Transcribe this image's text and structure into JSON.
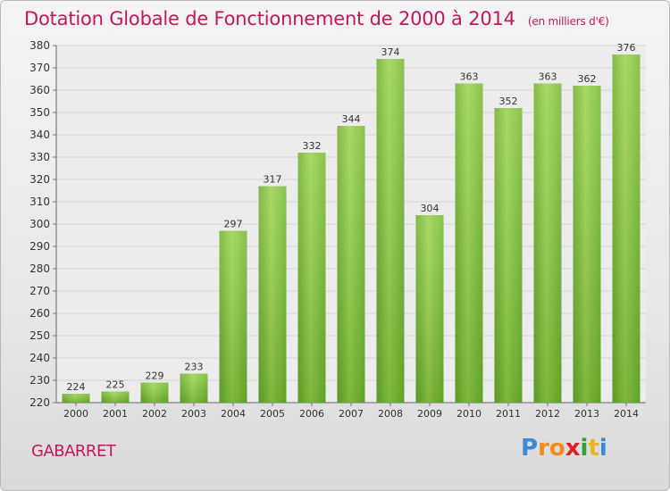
{
  "chart_data": {
    "type": "bar",
    "title": "Dotation Globale de Fonctionnement de 2000 à 2014",
    "subtitle": "(en milliers d'€)",
    "categories": [
      "2000",
      "2001",
      "2002",
      "2003",
      "2004",
      "2005",
      "2006",
      "2007",
      "2008",
      "2009",
      "2010",
      "2011",
      "2012",
      "2013",
      "2014"
    ],
    "values": [
      224,
      225,
      229,
      233,
      297,
      317,
      332,
      344,
      374,
      304,
      363,
      352,
      363,
      362,
      376
    ],
    "ylim": [
      220,
      380
    ],
    "ytick_step": 10,
    "grid": true,
    "bar_color": "#7cc13a"
  },
  "footer": {
    "city": "GABARRET",
    "logo_letters": [
      "P",
      "r",
      "o",
      "x",
      "i",
      "t",
      "i"
    ],
    "logo_colors": [
      "#3a88d8",
      "#f28c1c",
      "#f28c1c",
      "#d6232a",
      "#3a9d2e",
      "#e8b520",
      "#3a88d8"
    ]
  }
}
